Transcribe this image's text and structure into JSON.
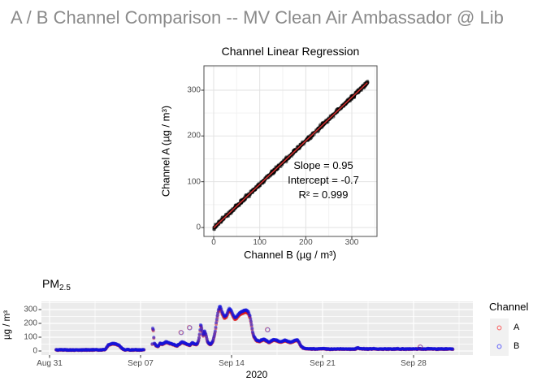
{
  "page": {
    "title": "A / B Channel Comparison -- MV Clean Air Ambassador @ Lib",
    "title_color": "#8a8a8a",
    "background": "#ffffff"
  },
  "chart_data": [
    {
      "type": "scatter",
      "title": "Channel Linear Regression",
      "xlabel": "Channel B (µg / m³)",
      "ylabel": "Channel A (µg / m³)",
      "xticks": [
        0,
        100,
        200,
        300
      ],
      "yticks": [
        0,
        100,
        200,
        300
      ],
      "xlim": [
        -21,
        355
      ],
      "ylim": [
        -20,
        353
      ],
      "grid": "major+minor light gray on white, dark panel border",
      "annotation_lines": [
        "Slope = 0.95",
        "Intercept = -0.7",
        "R² = 0.999"
      ],
      "regression": {
        "slope": 0.95,
        "intercept": -0.7,
        "r2": 0.999,
        "x_range": [
          0,
          335
        ],
        "n_points": 900,
        "noise_sd": 4.5,
        "seed": 11,
        "point_color": "#000000",
        "point_alpha": 0.5,
        "line_color": "#e03434"
      }
    },
    {
      "type": "scatter-timeseries",
      "title": {
        "main": "PM",
        "sub": "2.5"
      },
      "ylabel": "µg / m³",
      "year_label": "2020",
      "xtick_labels": [
        "Aug 31",
        "Sep 07",
        "Sep 14",
        "Sep 21",
        "Sep 28"
      ],
      "xtick_days": [
        0,
        7,
        14,
        21,
        28
      ],
      "yticks": [
        0,
        100,
        200,
        300
      ],
      "ylim": [
        -29,
        358
      ],
      "xlim_days": [
        -0.63,
        32.56
      ],
      "step_days": 0.04,
      "jitter_sd": 3,
      "seed": 5,
      "legend": {
        "title": "Channel",
        "entries": [
          {
            "label": "A",
            "color": "#ff0000"
          },
          {
            "label": "B",
            "color": "#0000ff"
          }
        ]
      },
      "series": [
        {
          "name": "A",
          "color": "#dd1212",
          "derived_from": "B",
          "slope": 0.95,
          "intercept": -0.7
        },
        {
          "name": "B",
          "color": "#1212dd",
          "segments": [
            [
              [
                0.5,
                8
              ],
              [
                1.0,
                9
              ],
              [
                1.5,
                8
              ],
              [
                2.0,
                7
              ],
              [
                2.5,
                8
              ],
              [
                3.0,
                9
              ],
              [
                3.5,
                8
              ],
              [
                4.0,
                9
              ],
              [
                4.3,
                12
              ],
              [
                4.5,
                42
              ],
              [
                4.7,
                52
              ],
              [
                4.95,
                55
              ],
              [
                5.15,
                50
              ],
              [
                5.35,
                42
              ],
              [
                5.55,
                20
              ],
              [
                5.75,
                10
              ],
              [
                6.2,
                9
              ],
              [
                6.8,
                8
              ],
              [
                7.3,
                9
              ]
            ],
            [
              [
                7.9,
                50
              ],
              [
                7.95,
                195
              ],
              [
                8.05,
                60
              ],
              [
                8.2,
                40
              ],
              [
                8.35,
                33
              ],
              [
                8.5,
                58
              ],
              [
                8.65,
                50
              ],
              [
                8.8,
                58
              ],
              [
                9.0,
                68
              ],
              [
                9.2,
                58
              ],
              [
                9.4,
                52
              ],
              [
                9.6,
                45
              ],
              [
                9.8,
                38
              ],
              [
                10.0,
                52
              ],
              [
                10.2,
                66
              ],
              [
                10.4,
                58
              ],
              [
                10.6,
                48
              ],
              [
                10.8,
                44
              ],
              [
                11.0,
                60
              ],
              [
                11.15,
                52
              ],
              [
                11.3,
                47
              ],
              [
                11.45,
                70
              ],
              [
                11.55,
                130
              ],
              [
                11.63,
                195
              ],
              [
                11.72,
                155
              ],
              [
                11.82,
                112
              ],
              [
                11.92,
                148
              ],
              [
                12.02,
                122
              ],
              [
                12.12,
                78
              ],
              [
                12.25,
                54
              ],
              [
                12.4,
                48
              ],
              [
                12.55,
                70
              ],
              [
                12.65,
                105
              ],
              [
                12.75,
                150
              ],
              [
                12.83,
                210
              ],
              [
                12.9,
                255
              ],
              [
                12.98,
                295
              ],
              [
                13.06,
                318
              ],
              [
                13.14,
                325
              ],
              [
                13.22,
                298
              ],
              [
                13.32,
                272
              ],
              [
                13.45,
                248
              ],
              [
                13.6,
                260
              ],
              [
                13.72,
                288
              ],
              [
                13.82,
                308
              ],
              [
                13.95,
                298
              ],
              [
                14.1,
                266
              ],
              [
                14.25,
                240
              ],
              [
                14.4,
                250
              ],
              [
                14.55,
                268
              ],
              [
                14.7,
                282
              ],
              [
                14.85,
                290
              ],
              [
                15.0,
                293
              ],
              [
                15.15,
                297
              ],
              [
                15.3,
                283
              ],
              [
                15.42,
                252
              ],
              [
                15.52,
                200
              ],
              [
                15.62,
                140
              ],
              [
                15.72,
                105
              ],
              [
                15.85,
                85
              ],
              [
                16.0,
                75
              ],
              [
                16.15,
                70
              ],
              [
                16.3,
                80
              ],
              [
                16.5,
                86
              ],
              [
                16.7,
                73
              ],
              [
                16.9,
                64
              ],
              [
                17.1,
                76
              ],
              [
                17.3,
                84
              ],
              [
                17.5,
                76
              ],
              [
                17.7,
                68
              ],
              [
                17.9,
                72
              ],
              [
                18.1,
                78
              ],
              [
                18.3,
                70
              ],
              [
                18.5,
                64
              ],
              [
                18.7,
                70
              ],
              [
                18.9,
                78
              ],
              [
                19.05,
                82
              ],
              [
                19.2,
                62
              ],
              [
                19.35,
                35
              ],
              [
                19.5,
                22
              ],
              [
                19.7,
                17
              ],
              [
                20.0,
                16
              ],
              [
                20.5,
                15
              ],
              [
                21.0,
                16
              ],
              [
                21.5,
                14
              ],
              [
                22.0,
                15
              ],
              [
                22.5,
                16
              ],
              [
                23.0,
                14
              ],
              [
                23.5,
                15
              ],
              [
                23.7,
                22
              ],
              [
                23.9,
                18
              ],
              [
                24.4,
                15
              ],
              [
                25.0,
                16
              ],
              [
                25.6,
                14
              ],
              [
                26.2,
                15
              ],
              [
                26.8,
                16
              ],
              [
                27.4,
                14
              ],
              [
                28.0,
                16
              ],
              [
                28.6,
                15
              ],
              [
                29.2,
                16
              ],
              [
                29.8,
                14
              ],
              [
                30.4,
                15
              ],
              [
                31.05,
                15
              ]
            ]
          ],
          "outliers": [
            [
              10.1,
              135
            ],
            [
              10.75,
              170
            ],
            [
              16.75,
              155
            ],
            [
              28.5,
              30
            ]
          ]
        }
      ]
    }
  ]
}
